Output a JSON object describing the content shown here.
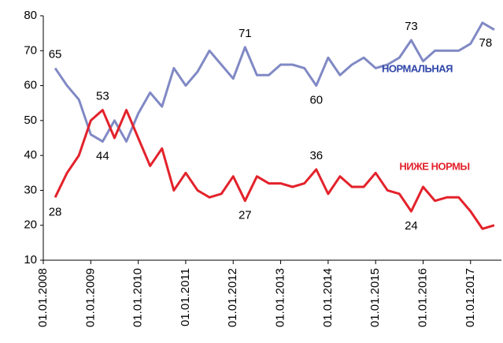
{
  "chart_data": {
    "type": "line",
    "x": [
      2008.25,
      2008.5,
      2008.75,
      2009,
      2009.25,
      2009.5,
      2009.75,
      2010,
      2010.25,
      2010.5,
      2010.75,
      2011,
      2011.25,
      2011.5,
      2011.75,
      2012,
      2012.25,
      2012.5,
      2012.75,
      2013,
      2013.25,
      2013.5,
      2013.75,
      2014,
      2014.25,
      2014.5,
      2014.75,
      2015,
      2015.25,
      2015.5,
      2015.75,
      2016,
      2016.25,
      2016.5,
      2016.75,
      2017,
      2017.25,
      2017.5
    ],
    "series": [
      {
        "name": "НОРМАЛЬНАЯ",
        "color": "#8089c4",
        "label_color": "#2e45a8",
        "values": [
          65,
          60,
          56,
          46,
          44,
          50,
          44,
          52,
          58,
          54,
          65,
          60,
          64,
          70,
          66,
          62,
          71,
          63,
          63,
          66,
          66,
          65,
          60,
          68,
          63,
          66,
          68,
          65,
          66,
          68,
          73,
          67,
          70,
          70,
          70,
          72,
          78,
          76
        ],
        "value_labels": [
          "65",
          null,
          null,
          null,
          "44",
          null,
          null,
          null,
          null,
          null,
          null,
          null,
          null,
          null,
          null,
          null,
          "71",
          null,
          null,
          null,
          null,
          null,
          "60",
          null,
          null,
          null,
          null,
          null,
          null,
          null,
          "73",
          null,
          null,
          null,
          null,
          null,
          "78",
          null
        ]
      },
      {
        "name": "НИЖЕ НОРМЫ",
        "color": "#e3222b",
        "label_color": "#e3222b",
        "values": [
          28,
          35,
          40,
          50,
          53,
          45,
          53,
          45,
          37,
          42,
          30,
          35,
          30,
          28,
          29,
          34,
          27,
          34,
          32,
          32,
          31,
          32,
          36,
          29,
          34,
          31,
          31,
          35,
          30,
          29,
          24,
          31,
          27,
          28,
          28,
          24,
          19,
          20
        ],
        "value_labels": [
          "28",
          null,
          null,
          null,
          "53",
          null,
          null,
          null,
          null,
          null,
          null,
          null,
          null,
          null,
          null,
          null,
          "27",
          null,
          null,
          null,
          null,
          null,
          "36",
          null,
          null,
          null,
          null,
          null,
          null,
          null,
          "24",
          null,
          null,
          null,
          null,
          null,
          null,
          null
        ]
      }
    ],
    "xlim": [
      2008,
      2017.65
    ],
    "xticks": [
      {
        "value": 2008,
        "label": "01.01.2008"
      },
      {
        "value": 2009,
        "label": "01.01.2009"
      },
      {
        "value": 2010,
        "label": "01.01.2010"
      },
      {
        "value": 2011,
        "label": "01.01.2011"
      },
      {
        "value": 2012,
        "label": "01.01.2012"
      },
      {
        "value": 2013,
        "label": "01.01.2013"
      },
      {
        "value": 2014,
        "label": "01.01.2014"
      },
      {
        "value": 2015,
        "label": "01.01.2015"
      },
      {
        "value": 2016,
        "label": "01.01.2016"
      },
      {
        "value": 2017,
        "label": "01.01.2017"
      }
    ],
    "ylim": [
      10,
      80
    ],
    "yticks": [
      10,
      20,
      30,
      40,
      50,
      60,
      70,
      80
    ],
    "grid": false
  }
}
